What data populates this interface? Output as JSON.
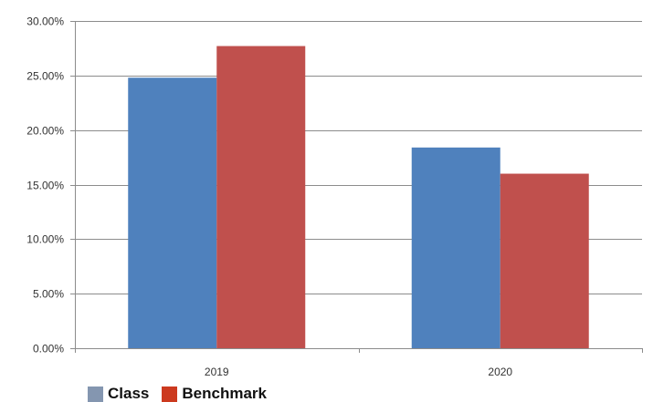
{
  "chart_data": {
    "type": "bar",
    "categories": [
      "2019",
      "2020"
    ],
    "series": [
      {
        "name": "Class",
        "values": [
          24.8,
          18.4
        ],
        "color": "#4f81bd",
        "legend_color": "#8496b0"
      },
      {
        "name": "Benchmark",
        "values": [
          27.7,
          16.0
        ],
        "color": "#c0504d",
        "legend_color": "#cc3a1f"
      }
    ],
    "ylim": [
      0,
      30
    ],
    "yticks": [
      0,
      5,
      10,
      15,
      20,
      25,
      30
    ],
    "ytick_labels": [
      "0.00%",
      "5.00%",
      "10.00%",
      "15.00%",
      "20.00%",
      "25.00%",
      "30.00%"
    ],
    "grid": true,
    "legend_position": "bottom-left",
    "title": "",
    "xlabel": "",
    "ylabel": ""
  }
}
